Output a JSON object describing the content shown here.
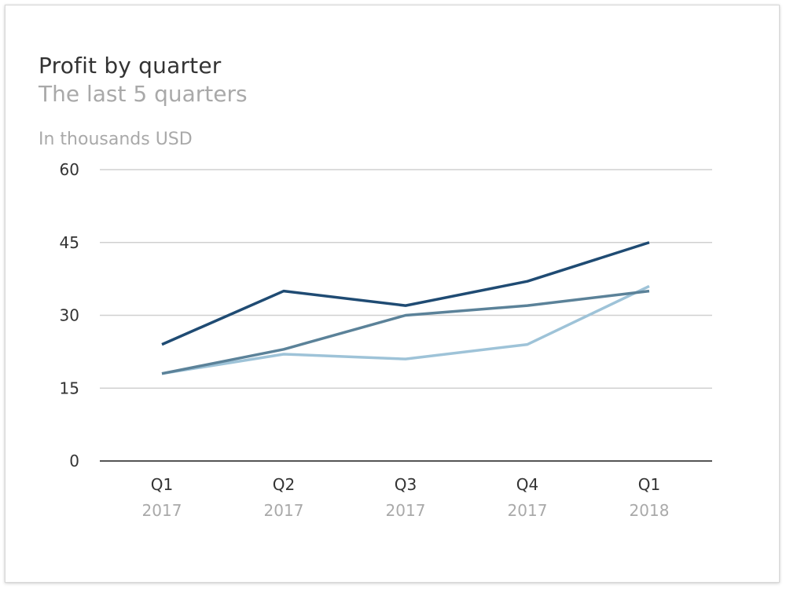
{
  "chart_data": {
    "type": "line",
    "title": "Profit by quarter",
    "subtitle": "The last 5 quarters",
    "ylabel": "In thousands USD",
    "xlabel": "",
    "categories": [
      {
        "quarter": "Q1",
        "year": "2017"
      },
      {
        "quarter": "Q2",
        "year": "2017"
      },
      {
        "quarter": "Q3",
        "year": "2017"
      },
      {
        "quarter": "Q4",
        "year": "2017"
      },
      {
        "quarter": "Q1",
        "year": "2018"
      }
    ],
    "ylim": [
      0,
      60
    ],
    "yticks": [
      "0",
      "15",
      "30",
      "45",
      "60"
    ],
    "grid": true,
    "series": [
      {
        "color": "#1f4b73",
        "values": [
          24,
          35,
          32,
          37,
          45
        ]
      },
      {
        "color": "#5b8299",
        "values": [
          18,
          23,
          30,
          32,
          35
        ]
      },
      {
        "color": "#9ec3d8",
        "values": [
          18,
          22,
          21,
          24,
          36
        ]
      }
    ],
    "colors": {
      "grid": "#d0d0d0",
      "axis": "#555555"
    }
  }
}
